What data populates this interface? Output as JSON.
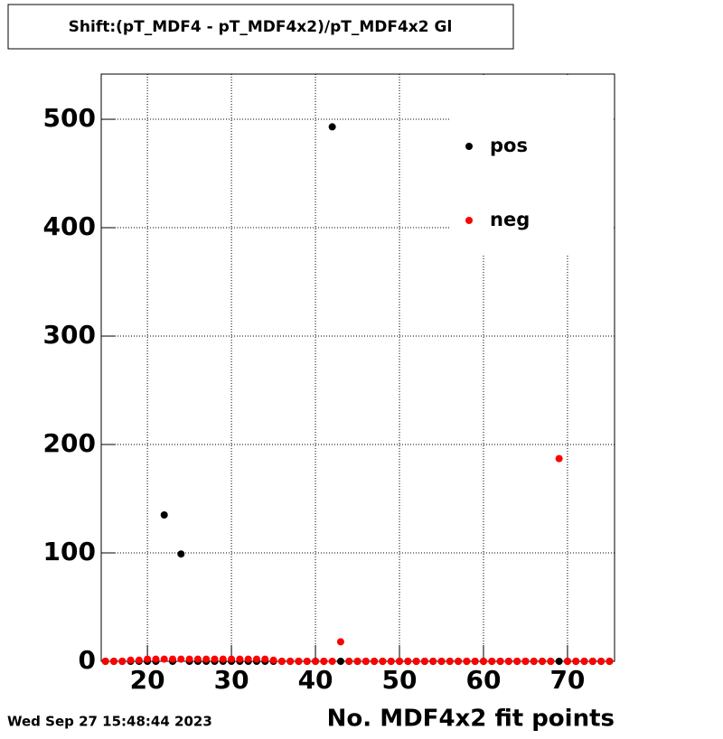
{
  "chart_data": {
    "type": "scatter",
    "title": "Shift:(pT_MDF4 - pT_MDF4x2)/pT_MDF4x2 Gl",
    "x_label": "No. MDF4x2 fit points",
    "timestamp": "Wed Sep 27 15:48:44 2023",
    "x": [
      15,
      16,
      17,
      18,
      19,
      20,
      21,
      22,
      23,
      24,
      25,
      26,
      27,
      28,
      29,
      30,
      31,
      32,
      33,
      34,
      35,
      36,
      37,
      38,
      39,
      40,
      41,
      42,
      43,
      44,
      45,
      46,
      47,
      48,
      49,
      50,
      51,
      52,
      53,
      54,
      55,
      56,
      57,
      58,
      59,
      60,
      61,
      62,
      63,
      64,
      65,
      66,
      67,
      68,
      69,
      70,
      71,
      72,
      73,
      74,
      75
    ],
    "series": [
      {
        "name": "pos",
        "color": "#000000",
        "values": [
          0,
          0,
          0,
          0,
          0,
          0,
          0,
          135,
          0,
          99,
          0,
          0,
          0,
          0,
          0,
          0,
          0,
          0,
          0,
          0,
          0,
          0,
          0,
          0,
          0,
          0,
          0,
          493,
          0,
          0,
          0,
          0,
          0,
          0,
          0,
          0,
          0,
          0,
          0,
          0,
          0,
          0,
          0,
          0,
          0,
          0,
          0,
          0,
          0,
          0,
          0,
          0,
          0,
          0,
          0,
          0,
          0,
          0,
          0,
          0,
          0
        ]
      },
      {
        "name": "neg",
        "color": "#ff0000",
        "values": [
          0,
          0,
          0,
          1,
          1,
          2,
          2,
          2,
          2,
          2,
          2,
          2,
          2,
          2,
          2,
          2,
          2,
          2,
          2,
          2,
          1,
          0,
          0,
          0,
          0,
          0,
          0,
          0,
          18,
          0,
          0,
          0,
          0,
          0,
          0,
          0,
          0,
          0,
          0,
          0,
          0,
          0,
          0,
          0,
          0,
          0,
          0,
          0,
          0,
          0,
          0,
          0,
          0,
          0,
          187,
          0,
          0,
          0,
          0,
          0,
          0
        ]
      }
    ],
    "xlim": [
      14.5,
      75.6
    ],
    "ylim": [
      0,
      541.7
    ],
    "xticks": [
      20,
      30,
      40,
      50,
      60,
      70
    ],
    "yticks": [
      0,
      100,
      200,
      300,
      400,
      500
    ],
    "grid": true,
    "legend": "upper right"
  }
}
